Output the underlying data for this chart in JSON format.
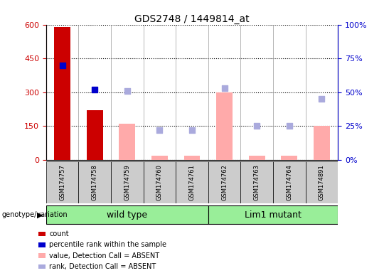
{
  "title": "GDS2748 / 1449814_at",
  "samples": [
    "GSM174757",
    "GSM174758",
    "GSM174759",
    "GSM174760",
    "GSM174761",
    "GSM174762",
    "GSM174763",
    "GSM174764",
    "GSM174891"
  ],
  "count_values": [
    590,
    220,
    null,
    null,
    null,
    null,
    null,
    null,
    null
  ],
  "count_color": "#cc0000",
  "percentile_values": [
    70,
    52,
    null,
    null,
    null,
    null,
    null,
    null,
    null
  ],
  "percentile_color": "#0000cc",
  "absent_value": [
    null,
    null,
    160,
    18,
    18,
    300,
    18,
    18,
    150
  ],
  "absent_value_color": "#ffaaaa",
  "absent_rank": [
    null,
    null,
    51,
    22,
    22,
    53,
    25,
    25,
    45
  ],
  "absent_rank_color": "#aaaadd",
  "ylim_left": [
    0,
    600
  ],
  "ylim_right": [
    0,
    100
  ],
  "yticks_left": [
    0,
    150,
    300,
    450,
    600
  ],
  "yticks_right": [
    0,
    25,
    50,
    75,
    100
  ],
  "yticklabels_right": [
    "0%",
    "25%",
    "50%",
    "75%",
    "100%"
  ],
  "left_tick_color": "#cc0000",
  "right_tick_color": "#0000cc",
  "group1_label": "wild type",
  "group2_label": "Lim1 mutant",
  "group_label_prefix": "genotype/variation",
  "group_bg_color": "#99ee99",
  "group_label_fontsize": 9,
  "bar_width": 0.5,
  "dot_size": 40,
  "legend_items": [
    {
      "label": "count",
      "color": "#cc0000"
    },
    {
      "label": "percentile rank within the sample",
      "color": "#0000cc"
    },
    {
      "label": "value, Detection Call = ABSENT",
      "color": "#ffaaaa"
    },
    {
      "label": "rank, Detection Call = ABSENT",
      "color": "#aaaadd"
    }
  ]
}
